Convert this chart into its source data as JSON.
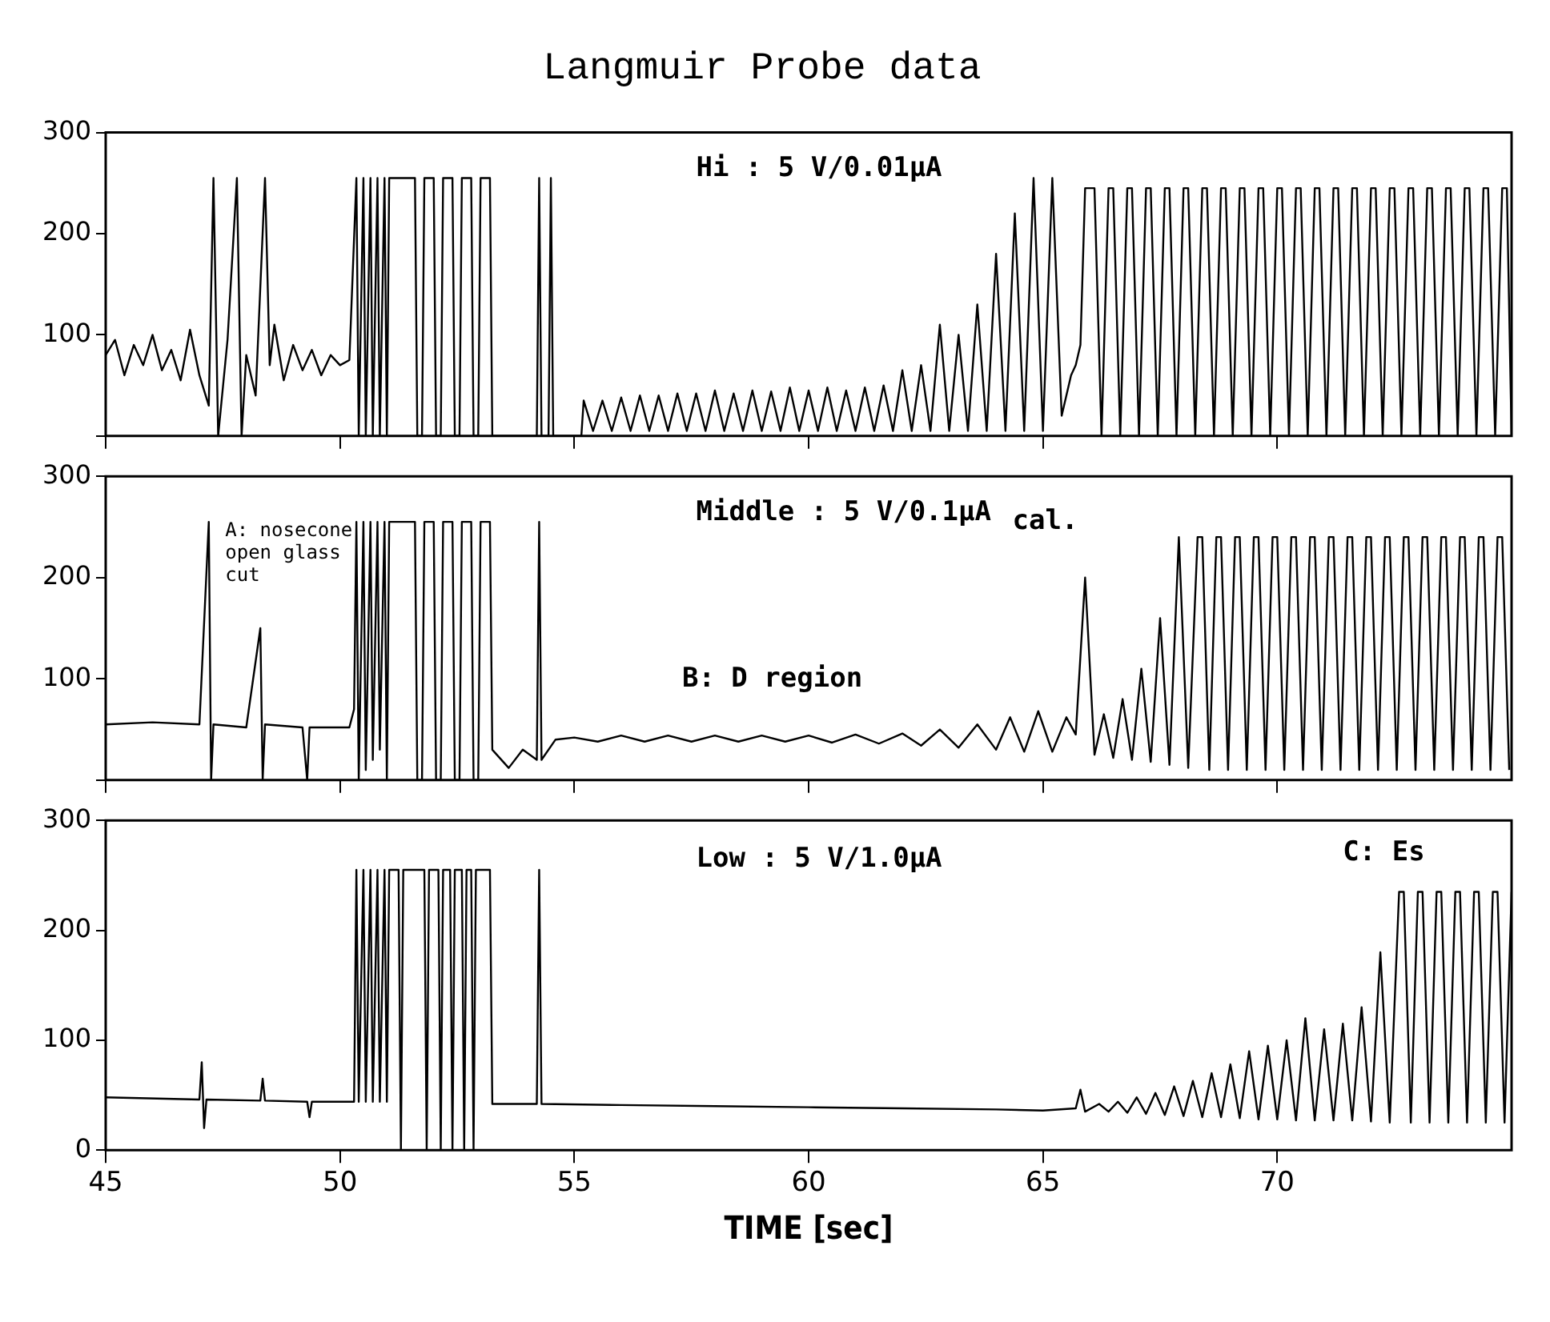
{
  "chart_data": [
    {
      "type": "line",
      "title": "Langmuir Probe data",
      "xlim": [
        45,
        75
      ],
      "xticks": [
        45,
        50,
        55,
        60,
        65,
        70
      ],
      "ylim": [
        0,
        300
      ],
      "yticks": [
        {
          "value": 0,
          "label": null
        },
        100,
        200,
        300
      ],
      "tick_labels": "y",
      "marker": "none",
      "grid": false,
      "annotations": [
        "Hi : 5 V/0.01μA"
      ],
      "series": [
        {
          "color": "#000000",
          "x": [
            45,
            45.2,
            45.4,
            45.6,
            45.8,
            46,
            46.2,
            46.4,
            46.6,
            46.8,
            47,
            47.2,
            47.3,
            47.4,
            47.6,
            47.8,
            47.9,
            48,
            48.2,
            48.4,
            48.5,
            48.6,
            48.8,
            49,
            49.2,
            49.4,
            49.6,
            49.8,
            50,
            50.2,
            50.35,
            50.4,
            50.5,
            50.55,
            50.65,
            50.7,
            50.8,
            50.85,
            50.95,
            51.0,
            51.05,
            51.6,
            51.65,
            51.75,
            51.8,
            52.0,
            52.05,
            52.15,
            52.2,
            52.4,
            52.45,
            52.55,
            52.6,
            52.8,
            52.85,
            52.95,
            53.0,
            53.2,
            53.25,
            54.2,
            54.25,
            54.3,
            54.45,
            54.5,
            54.55,
            55.15,
            55.2,
            55.4,
            55.6,
            55.8,
            56,
            56.2,
            56.4,
            56.6,
            56.8,
            57,
            57.2,
            57.4,
            57.6,
            57.8,
            58,
            58.2,
            58.4,
            58.6,
            58.8,
            59,
            59.2,
            59.4,
            59.6,
            59.8,
            60,
            60.2,
            60.4,
            60.6,
            60.8,
            61,
            61.2,
            61.4,
            61.6,
            61.8,
            62,
            62.2,
            62.4,
            62.6,
            62.8,
            63,
            63.2,
            63.4,
            63.6,
            63.8,
            64,
            64.2,
            64.4,
            64.6,
            64.8,
            65,
            65.2,
            65.4,
            65.6,
            65.7,
            65.8,
            65.9,
            66.0,
            66.1,
            66.25,
            66.4,
            66.5,
            66.65,
            66.8,
            66.9,
            67.05,
            67.2,
            67.3,
            67.45,
            67.6,
            67.7,
            67.85,
            68.0,
            68.1,
            68.25,
            68.4,
            68.5,
            68.65,
            68.8,
            68.9,
            69.05,
            69.2,
            69.3,
            69.45,
            69.6,
            69.7,
            69.85,
            70.0,
            70.1,
            70.25,
            70.4,
            70.5,
            70.65,
            70.8,
            70.9,
            71.05,
            71.2,
            71.3,
            71.45,
            71.6,
            71.7,
            71.85,
            72.0,
            72.1,
            72.25,
            72.4,
            72.5,
            72.65,
            72.8,
            72.9,
            73.05,
            73.2,
            73.3,
            73.45,
            73.6,
            73.7,
            73.85,
            74.0,
            74.1,
            74.25,
            74.4,
            74.5,
            74.65,
            74.8,
            74.9,
            75
          ],
          "values": [
            80,
            95,
            60,
            90,
            70,
            100,
            65,
            85,
            55,
            105,
            60,
            30,
            255,
            0,
            95,
            255,
            0,
            80,
            40,
            255,
            70,
            110,
            55,
            90,
            65,
            85,
            60,
            80,
            70,
            75,
            255,
            0,
            255,
            0,
            255,
            0,
            255,
            0,
            255,
            0,
            255,
            255,
            0,
            0,
            255,
            255,
            0,
            0,
            255,
            255,
            0,
            0,
            255,
            255,
            0,
            0,
            255,
            255,
            0,
            0,
            255,
            0,
            0,
            255,
            0,
            0,
            35,
            5,
            35,
            5,
            38,
            5,
            40,
            5,
            40,
            5,
            42,
            5,
            42,
            5,
            45,
            5,
            42,
            5,
            45,
            5,
            44,
            5,
            48,
            5,
            45,
            5,
            48,
            5,
            45,
            5,
            48,
            5,
            50,
            5,
            65,
            5,
            70,
            5,
            110,
            5,
            100,
            5,
            130,
            5,
            180,
            5,
            220,
            5,
            255,
            5,
            255,
            20,
            60,
            70,
            90,
            245,
            245,
            245,
            0,
            245,
            245,
            0,
            245,
            245,
            0,
            245,
            245,
            0,
            245,
            245,
            0,
            245,
            245,
            0,
            245,
            245,
            0,
            245,
            245,
            0,
            245,
            245,
            0,
            245,
            245,
            0,
            245,
            245,
            0,
            245,
            245,
            0,
            245,
            245,
            0,
            245,
            245,
            0,
            245,
            245,
            0,
            245,
            245,
            0,
            245,
            245,
            0,
            245,
            245,
            0,
            245,
            245,
            0,
            245,
            245,
            0,
            245,
            245,
            0,
            245,
            245,
            0,
            245,
            245,
            0
          ]
        }
      ]
    },
    {
      "type": "line",
      "xlim": [
        45,
        75
      ],
      "xticks": [
        45,
        50,
        55,
        60,
        65,
        70
      ],
      "ylim": [
        0,
        300
      ],
      "yticks": [
        {
          "value": 0,
          "label": null
        },
        100,
        200,
        300
      ],
      "tick_labels": "y",
      "marker": "none",
      "grid": false,
      "annotations": [
        "Middle : 5 V/0.1μA",
        "A: nosecone open glass cut",
        "cal.",
        "B: D region"
      ],
      "series": [
        {
          "color": "#000000",
          "x": [
            45,
            46,
            47,
            47.2,
            47.25,
            47.3,
            48,
            48.3,
            48.35,
            48.4,
            49.2,
            49.3,
            49.35,
            50.2,
            50.3,
            50.35,
            50.4,
            50.5,
            50.55,
            50.65,
            50.7,
            50.8,
            50.85,
            50.95,
            51.0,
            51.05,
            51.6,
            51.65,
            51.75,
            51.8,
            52.0,
            52.05,
            52.15,
            52.2,
            52.4,
            52.45,
            52.55,
            52.6,
            52.8,
            52.85,
            52.95,
            53.0,
            53.2,
            53.25,
            53.6,
            53.9,
            54.2,
            54.25,
            54.3,
            54.6,
            55,
            55.5,
            56,
            56.5,
            57,
            57.5,
            58,
            58.5,
            59,
            59.5,
            60,
            60.5,
            61,
            61.5,
            62,
            62.4,
            62.8,
            63.2,
            63.6,
            64,
            64.3,
            64.6,
            64.9,
            65.2,
            65.5,
            65.7,
            65.9,
            66.1,
            66.3,
            66.5,
            66.7,
            66.9,
            67.1,
            67.3,
            67.5,
            67.7,
            67.9,
            68.1,
            68.3,
            68.4,
            68.55,
            68.7,
            68.8,
            68.95,
            69.1,
            69.2,
            69.35,
            69.5,
            69.6,
            69.75,
            69.9,
            70.0,
            70.15,
            70.3,
            70.4,
            70.55,
            70.7,
            70.8,
            70.95,
            71.1,
            71.2,
            71.35,
            71.5,
            71.6,
            71.75,
            71.9,
            72.0,
            72.15,
            72.3,
            72.4,
            72.55,
            72.7,
            72.8,
            72.95,
            73.1,
            73.2,
            73.35,
            73.5,
            73.6,
            73.75,
            73.9,
            74.0,
            74.15,
            74.3,
            74.4,
            74.55,
            74.7,
            74.8,
            74.95
          ],
          "values": [
            55,
            57,
            55,
            255,
            0,
            55,
            52,
            150,
            0,
            55,
            52,
            0,
            52,
            52,
            70,
            255,
            0,
            255,
            10,
            255,
            20,
            255,
            30,
            255,
            0,
            255,
            255,
            0,
            0,
            255,
            255,
            0,
            0,
            255,
            255,
            0,
            0,
            255,
            255,
            0,
            0,
            255,
            255,
            30,
            12,
            30,
            20,
            255,
            20,
            40,
            42,
            38,
            44,
            38,
            44,
            38,
            44,
            38,
            44,
            38,
            44,
            37,
            45,
            36,
            46,
            34,
            50,
            32,
            55,
            30,
            62,
            28,
            68,
            28,
            62,
            45,
            200,
            25,
            65,
            22,
            80,
            20,
            110,
            18,
            160,
            15,
            240,
            12,
            240,
            240,
            10,
            240,
            240,
            10,
            240,
            240,
            10,
            240,
            240,
            10,
            240,
            240,
            10,
            240,
            240,
            10,
            240,
            240,
            10,
            240,
            240,
            10,
            240,
            240,
            10,
            240,
            240,
            10,
            240,
            240,
            10,
            240,
            240,
            10,
            240,
            240,
            10,
            240,
            240,
            10,
            240,
            240,
            10,
            240,
            240,
            10,
            240,
            240,
            10
          ]
        }
      ]
    },
    {
      "type": "line",
      "xlabel": "TIME [sec]",
      "xlim": [
        45,
        75
      ],
      "xticks": [
        45,
        50,
        55,
        60,
        65,
        70
      ],
      "ylim": [
        0,
        300
      ],
      "yticks": [
        0,
        100,
        200,
        300
      ],
      "marker": "none",
      "grid": false,
      "annotations": [
        "Low : 5 V/1.0μA",
        "C: Es"
      ],
      "series": [
        {
          "color": "#000000",
          "x": [
            45,
            47,
            47.05,
            47.1,
            47.15,
            48.3,
            48.35,
            48.4,
            49.3,
            49.35,
            49.4,
            50.3,
            50.35,
            50.4,
            50.5,
            50.55,
            50.65,
            50.7,
            50.8,
            50.85,
            50.95,
            51.0,
            51.05,
            51.25,
            51.3,
            51.35,
            51.8,
            51.85,
            51.9,
            52.1,
            52.15,
            52.2,
            52.35,
            52.4,
            52.45,
            52.6,
            52.65,
            52.7,
            52.8,
            52.85,
            52.9,
            53.2,
            53.25,
            54.2,
            54.25,
            54.3,
            56,
            58,
            60,
            62,
            64,
            65,
            65.7,
            65.8,
            65.9,
            66.2,
            66.4,
            66.6,
            66.8,
            67,
            67.2,
            67.4,
            67.6,
            67.8,
            68,
            68.2,
            68.4,
            68.6,
            68.8,
            69,
            69.2,
            69.4,
            69.6,
            69.8,
            70,
            70.2,
            70.4,
            70.6,
            70.8,
            71,
            71.2,
            71.4,
            71.6,
            71.8,
            72,
            72.2,
            72.4,
            72.6,
            72.7,
            72.85,
            73.0,
            73.1,
            73.25,
            73.4,
            73.5,
            73.65,
            73.8,
            73.9,
            74.05,
            74.2,
            74.3,
            74.45,
            74.6,
            74.7,
            74.85,
            75
          ],
          "values": [
            48,
            46,
            80,
            20,
            46,
            45,
            65,
            45,
            44,
            30,
            44,
            44,
            255,
            44,
            255,
            44,
            255,
            44,
            255,
            44,
            255,
            44,
            255,
            255,
            0,
            255,
            255,
            0,
            255,
            255,
            0,
            255,
            255,
            0,
            255,
            255,
            0,
            255,
            255,
            0,
            255,
            255,
            42,
            42,
            255,
            42,
            41,
            40,
            39,
            38,
            37,
            36,
            38,
            55,
            35,
            42,
            35,
            44,
            34,
            48,
            33,
            52,
            32,
            58,
            31,
            63,
            30,
            70,
            30,
            78,
            29,
            90,
            28,
            95,
            28,
            100,
            27,
            120,
            27,
            110,
            27,
            115,
            27,
            130,
            26,
            180,
            25,
            235,
            235,
            25,
            235,
            235,
            25,
            235,
            235,
            25,
            235,
            235,
            25,
            235,
            235,
            25,
            235,
            235,
            25,
            235
          ]
        }
      ]
    }
  ]
}
